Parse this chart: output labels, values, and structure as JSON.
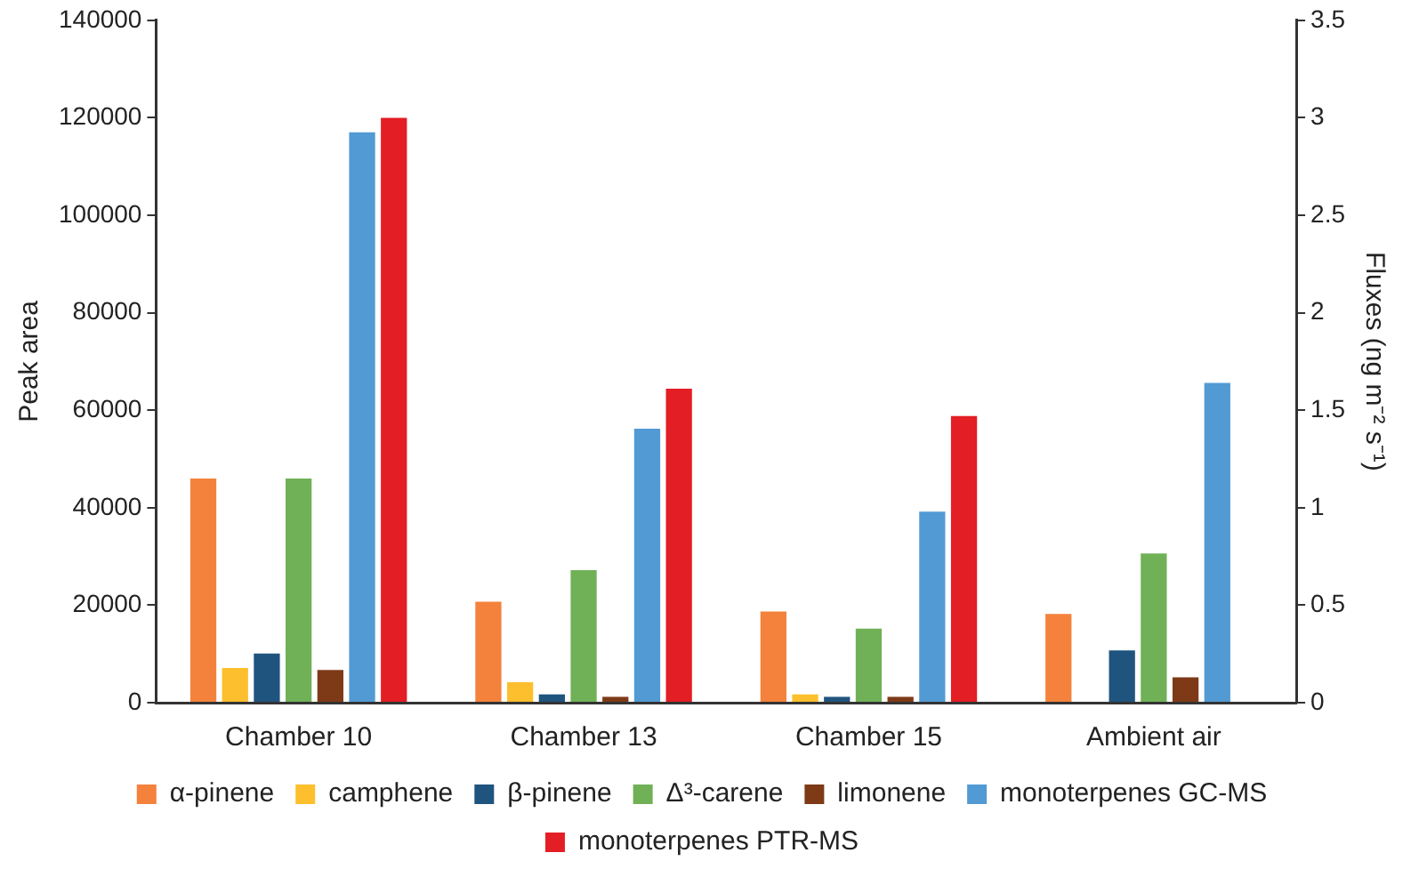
{
  "chart_data": {
    "type": "bar",
    "categories": [
      "Chamber 10",
      "Chamber 13",
      "Chamber 15",
      "Ambient air"
    ],
    "ylabel": "Peak area",
    "y2label": "Fluxes (ng m⁻² s⁻¹)",
    "ylim": [
      0,
      140000
    ],
    "yticks": [
      0,
      20000,
      40000,
      60000,
      80000,
      100000,
      120000,
      140000
    ],
    "y2lim": [
      0,
      3.5
    ],
    "y2ticks": [
      0,
      0.5,
      1,
      1.5,
      2,
      2.5,
      3,
      3.5
    ],
    "grid": false,
    "legend": "bottom",
    "series": [
      {
        "name": "α-pinene",
        "color": "#f4823c",
        "values": [
          46000,
          20700,
          18700,
          18200
        ]
      },
      {
        "name": "camphene",
        "color": "#fdbf2d",
        "values": [
          7100,
          4200,
          1700,
          null
        ]
      },
      {
        "name": "β-pinene",
        "color": "#1f547e",
        "values": [
          10100,
          1700,
          1200,
          10700
        ]
      },
      {
        "name": "Δ³-carene",
        "color": "#70b157",
        "values": [
          46000,
          27200,
          15200,
          30600
        ]
      },
      {
        "name": "limonene",
        "color": "#7e3a17",
        "values": [
          6700,
          1200,
          1200,
          5200
        ]
      },
      {
        "name": "monoterpenes GC-MS",
        "color": "#519ad4",
        "values": [
          117000,
          56200,
          39200,
          65600
        ]
      },
      {
        "name": "monoterpenes PTR-MS",
        "color": "#e31e24",
        "axis": "y2",
        "values": [
          3.0,
          1.61,
          1.47,
          null
        ]
      }
    ]
  }
}
